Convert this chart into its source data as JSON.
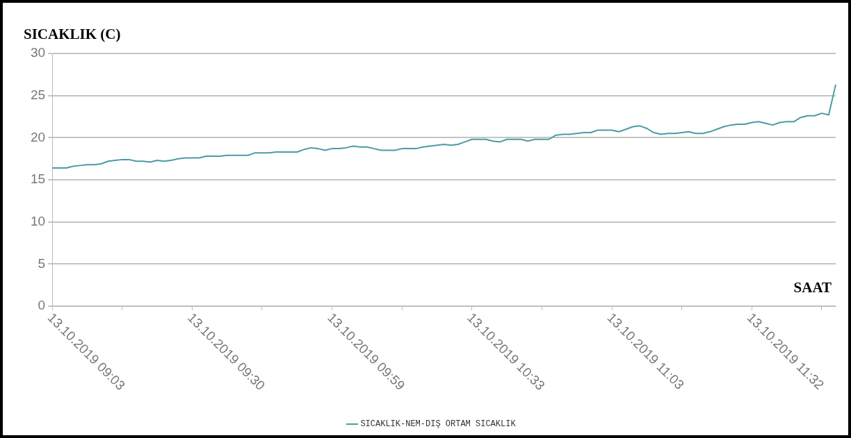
{
  "chart_data": {
    "type": "line",
    "ylabel": "SICAKLIK (C)",
    "xlabel": "SAAT",
    "categories": [
      "13.10.2019 09:03",
      null,
      null,
      null,
      null,
      null,
      null,
      null,
      null,
      null,
      null,
      null,
      null,
      null,
      null,
      null,
      null,
      null,
      null,
      null,
      "13.10.2019 09:30",
      null,
      null,
      null,
      null,
      null,
      null,
      null,
      null,
      null,
      null,
      null,
      null,
      null,
      null,
      null,
      null,
      null,
      null,
      null,
      "13.10.2019 09:59",
      null,
      null,
      null,
      null,
      null,
      null,
      null,
      null,
      null,
      null,
      null,
      null,
      null,
      null,
      null,
      null,
      null,
      null,
      null,
      "13.10.2019 10:33",
      null,
      null,
      null,
      null,
      null,
      null,
      null,
      null,
      null,
      null,
      null,
      null,
      null,
      null,
      null,
      null,
      null,
      null,
      null,
      "13.10.2019 11:03",
      null,
      null,
      null,
      null,
      null,
      null,
      null,
      null,
      null,
      null,
      null,
      null,
      null,
      null,
      null,
      null,
      null,
      null,
      null,
      "13.10.2019 11:32",
      null,
      null,
      null,
      null,
      null,
      null,
      null,
      null,
      null,
      null,
      null,
      null
    ],
    "series": [
      {
        "name": "SICAKLIK-NEM-DIŞ ORTAM SICAKLIK",
        "color": "#4a9ba6",
        "values": [
          16.4,
          16.4,
          16.4,
          16.6,
          16.7,
          16.8,
          16.8,
          16.9,
          17.2,
          17.3,
          17.4,
          17.4,
          17.2,
          17.2,
          17.1,
          17.3,
          17.2,
          17.3,
          17.5,
          17.6,
          17.6,
          17.6,
          17.8,
          17.8,
          17.8,
          17.9,
          17.9,
          17.9,
          17.9,
          18.2,
          18.2,
          18.2,
          18.3,
          18.3,
          18.3,
          18.3,
          18.6,
          18.8,
          18.7,
          18.5,
          18.7,
          18.7,
          18.8,
          19.0,
          18.9,
          18.9,
          18.7,
          18.5,
          18.5,
          18.5,
          18.7,
          18.7,
          18.7,
          18.9,
          19.0,
          19.1,
          19.2,
          19.1,
          19.2,
          19.5,
          19.8,
          19.8,
          19.8,
          19.6,
          19.5,
          19.8,
          19.8,
          19.8,
          19.6,
          19.8,
          19.8,
          19.8,
          20.3,
          20.4,
          20.4,
          20.5,
          20.6,
          20.6,
          20.9,
          20.9,
          20.9,
          20.7,
          21.0,
          21.3,
          21.4,
          21.1,
          20.6,
          20.4,
          20.5,
          20.5,
          20.6,
          20.7,
          20.5,
          20.5,
          20.7,
          21.0,
          21.3,
          21.5,
          21.6,
          21.6,
          21.8,
          21.9,
          21.7,
          21.5,
          21.8,
          21.9,
          21.9,
          22.4,
          22.6,
          22.6,
          22.9,
          22.7,
          26.3
        ]
      }
    ],
    "ylim": [
      0,
      30
    ],
    "yticks": [
      0,
      5,
      10,
      15,
      20,
      25,
      30
    ],
    "grid": "y",
    "legend": "bottom",
    "marker": "none",
    "line_style": "solid"
  }
}
